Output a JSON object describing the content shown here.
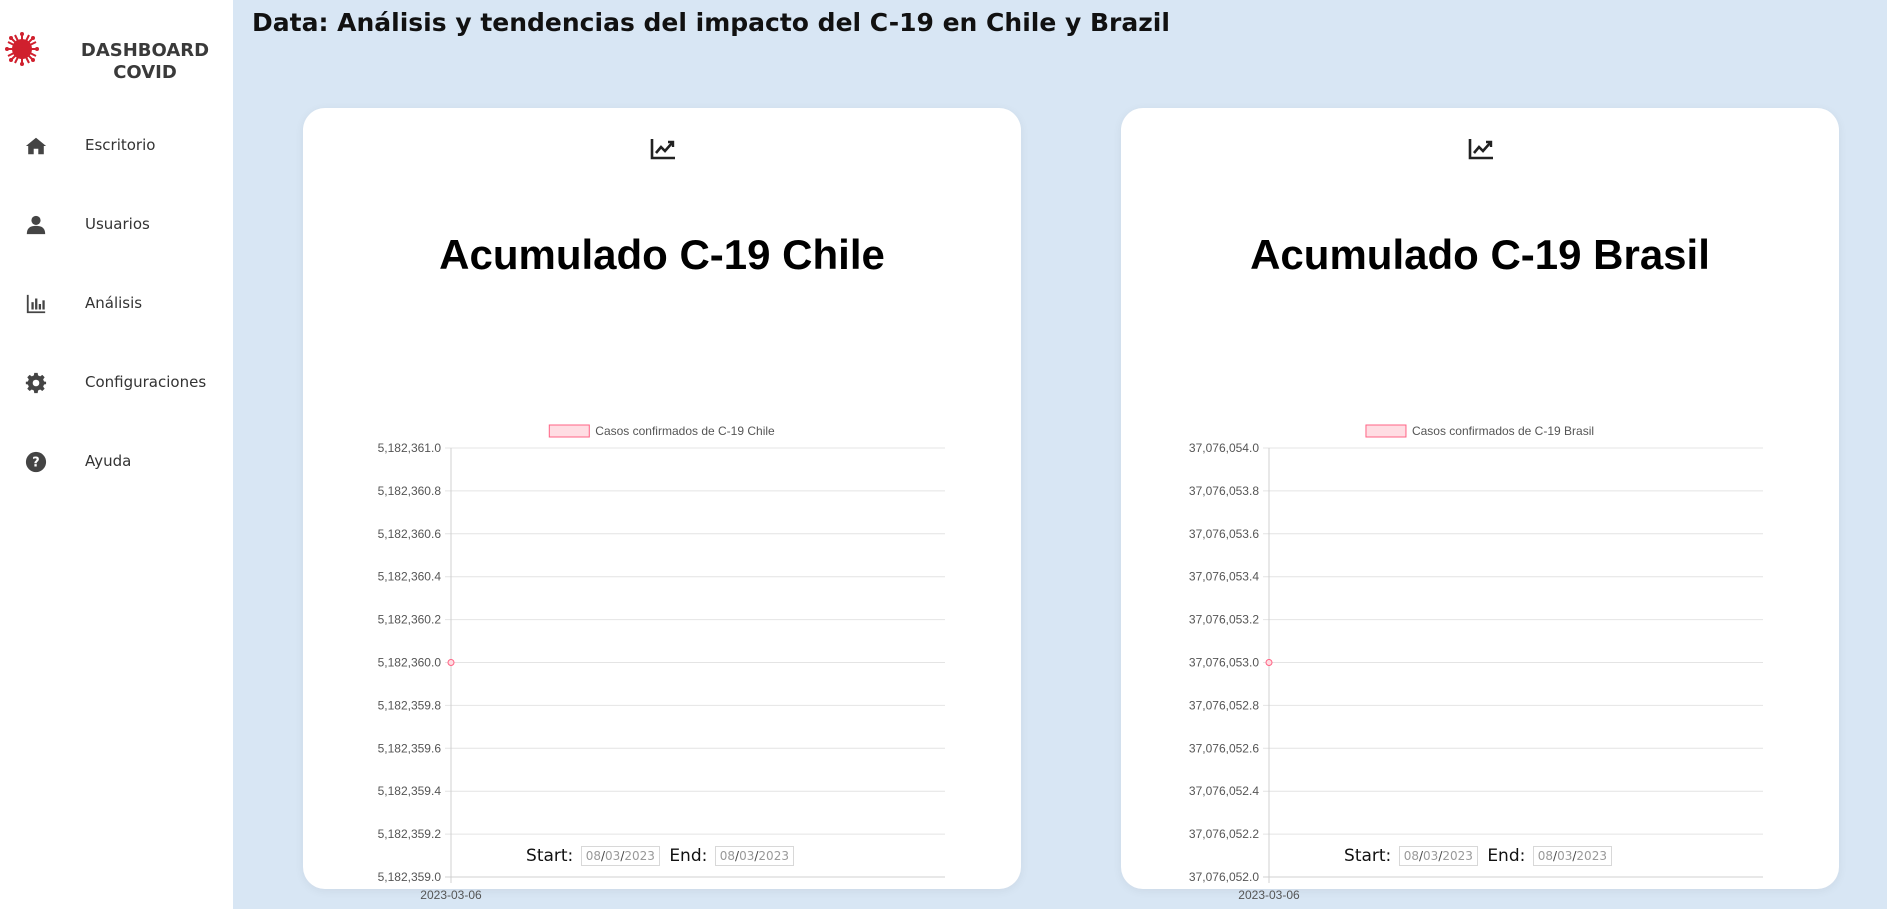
{
  "app": {
    "brand_line1": "DASHBOARD",
    "brand_line2": "COVID",
    "accent": "#d0202e"
  },
  "sidebar": {
    "items": [
      {
        "label": "Escritorio",
        "icon": "home-icon"
      },
      {
        "label": "Usuarios",
        "icon": "user-icon"
      },
      {
        "label": "Análisis",
        "icon": "bar-chart-icon"
      },
      {
        "label": "Configuraciones",
        "icon": "gear-icon"
      },
      {
        "label": "Ayuda",
        "icon": "help-icon"
      }
    ]
  },
  "page": {
    "title": "Data: Análisis y tendencias del impacto del C-19 en Chile y Brazil"
  },
  "cards": [
    {
      "title": "Acumulado C-19 Chile",
      "icon": "line-chart-icon",
      "start_label": "Start:",
      "end_label": "End:",
      "start": {
        "d": "08",
        "m": "03",
        "y": "2023"
      },
      "end": {
        "d": "08",
        "m": "03",
        "y": "2023"
      }
    },
    {
      "title": "Acumulado C-19 Brasil",
      "icon": "line-chart-icon",
      "start_label": "Start:",
      "end_label": "End:",
      "start": {
        "d": "08",
        "m": "03",
        "y": "2023"
      },
      "end": {
        "d": "08",
        "m": "03",
        "y": "2023"
      }
    }
  ],
  "chart_data": [
    {
      "type": "line",
      "title": "",
      "legend": "Casos confirmados de C-19 Chile",
      "legend_position": "top",
      "x": [
        "2023-03-06"
      ],
      "series": [
        {
          "name": "Casos confirmados de C-19 Chile",
          "values": [
            5182360.0
          ]
        }
      ],
      "ylim": [
        5182359.0,
        5182361.0
      ],
      "yticks": [
        "5,182,361.0",
        "5,182,360.8",
        "5,182,360.6",
        "5,182,360.4",
        "5,182,360.2",
        "5,182,360.0",
        "5,182,359.8",
        "5,182,359.6",
        "5,182,359.4",
        "5,182,359.2",
        "5,182,359.0"
      ],
      "grid": true,
      "colors": {
        "line": "#ff6384",
        "fill": "#ffdde3"
      }
    },
    {
      "type": "line",
      "title": "",
      "legend": "Casos confirmados de C-19 Brasil",
      "legend_position": "top",
      "x": [
        "2023-03-06"
      ],
      "series": [
        {
          "name": "Casos confirmados de C-19 Brasil",
          "values": [
            37076053.0
          ]
        }
      ],
      "ylim": [
        37076052.0,
        37076054.0
      ],
      "yticks": [
        "37,076,054.0",
        "37,076,053.8",
        "37,076,053.6",
        "37,076,053.4",
        "37,076,053.2",
        "37,076,053.0",
        "37,076,052.8",
        "37,076,052.6",
        "37,076,052.4",
        "37,076,052.2",
        "37,076,052.0"
      ],
      "grid": true,
      "colors": {
        "line": "#ff6384",
        "fill": "#ffdde3"
      }
    }
  ]
}
